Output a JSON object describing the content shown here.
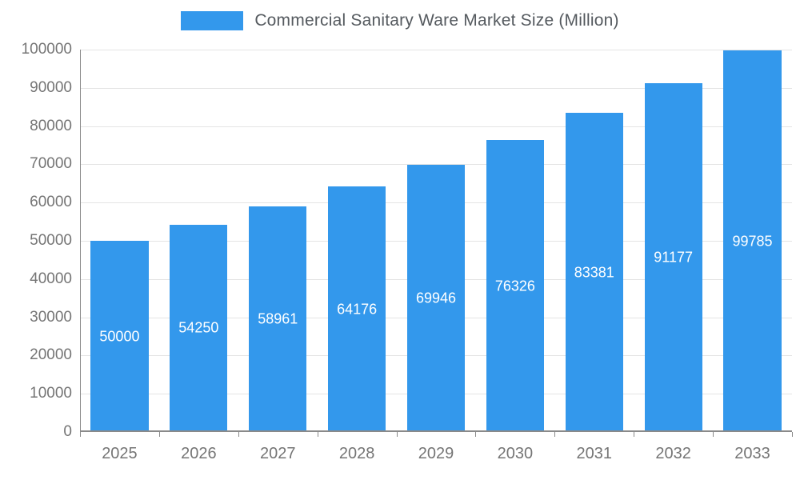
{
  "legend": {
    "swatch_color": "#3398ec",
    "label": "Commercial Sanitary Ware Market Size (Million)"
  },
  "chart_data": {
    "type": "bar",
    "title": "Commercial Sanitary Ware Market Size (Million)",
    "categories": [
      "2025",
      "2026",
      "2027",
      "2028",
      "2029",
      "2030",
      "2031",
      "2032",
      "2033"
    ],
    "values": [
      50000,
      54250,
      58961,
      64176,
      69946,
      76326,
      83381,
      91177,
      99785
    ],
    "value_labels": [
      "50000",
      "54250",
      "58961",
      "64176",
      "69946",
      "76326",
      "83381",
      "91177",
      "99785"
    ],
    "xlabel": "",
    "ylabel": "",
    "ylim": [
      0,
      100000
    ],
    "ytick_step": 10000,
    "ytick_labels": [
      "0",
      "10000",
      "20000",
      "30000",
      "40000",
      "50000",
      "60000",
      "70000",
      "80000",
      "90000",
      "100000"
    ],
    "grid": true,
    "legend_position": "top",
    "bar_color": "#3398ec",
    "value_label_color": "#ffffff",
    "axis_text_color": "#757575",
    "grid_color": "#e3e3e3"
  }
}
